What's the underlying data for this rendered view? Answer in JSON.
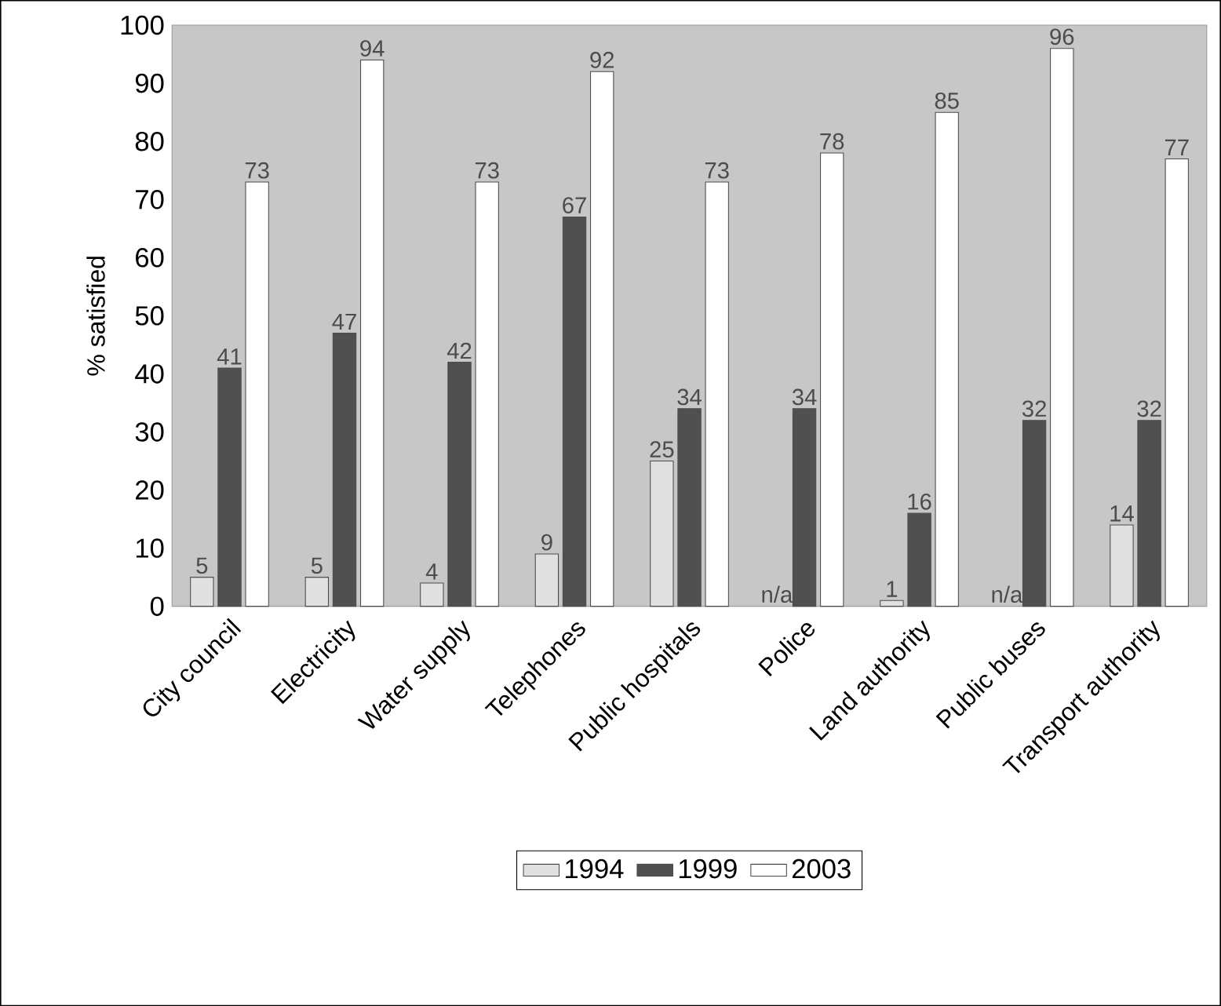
{
  "chart_data": {
    "type": "bar",
    "ylabel": "% satisfied",
    "categories": [
      "City council",
      "Electricity",
      "Water supply",
      "Telephones",
      "Public hospitals",
      "Police",
      "Land authority",
      "Public buses",
      "Transport authority"
    ],
    "series": [
      {
        "name": "1994",
        "color": "#e0e0e0",
        "values": [
          5,
          5,
          4,
          9,
          25,
          null,
          1,
          null,
          14
        ],
        "value_labels": [
          "5",
          "5",
          "4",
          "9",
          "25",
          "n/a",
          "1",
          "n/a",
          "14"
        ]
      },
      {
        "name": "1999",
        "color": "#505050",
        "values": [
          41,
          47,
          42,
          67,
          34,
          34,
          16,
          32,
          32
        ],
        "value_labels": [
          "41",
          "47",
          "42",
          "67",
          "34",
          "34",
          "16",
          "32",
          "32"
        ]
      },
      {
        "name": "2003",
        "color": "#ffffff",
        "values": [
          73,
          94,
          73,
          92,
          73,
          78,
          85,
          96,
          77
        ],
        "value_labels": [
          "73",
          "94",
          "73",
          "92",
          "73",
          "78",
          "85",
          "96",
          "77"
        ]
      }
    ],
    "ylim": [
      0,
      100
    ],
    "yticks": [
      0,
      10,
      20,
      30,
      40,
      50,
      60,
      70,
      80,
      90,
      100
    ],
    "grid": false,
    "legend": "bottom"
  }
}
